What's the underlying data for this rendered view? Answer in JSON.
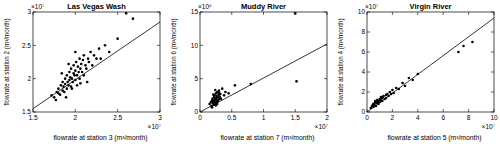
{
  "chart_data": [
    {
      "type": "scatter",
      "title": "Las Vegas Wash",
      "xlabel": "flowrate at station 3 (m³/month)",
      "ylabel": "flowrate at station 2 (m³/month)",
      "x_multiplier": "×10⁷",
      "y_multiplier": "×10⁷",
      "xlim": [
        1.5,
        3
      ],
      "ylim": [
        1.5,
        3
      ],
      "xticks": [
        1.5,
        2,
        2.5,
        3
      ],
      "yticks": [
        1.5,
        2,
        2.5,
        3
      ],
      "series": [
        {
          "type": "scatter",
          "marker": "dot",
          "color": "#000000",
          "x": [
            1.72,
            1.75,
            1.78,
            1.8,
            1.8,
            1.82,
            1.83,
            1.85,
            1.85,
            1.86,
            1.87,
            1.88,
            1.88,
            1.9,
            1.9,
            1.91,
            1.92,
            1.93,
            1.93,
            1.94,
            1.95,
            1.95,
            1.96,
            1.97,
            1.98,
            1.98,
            1.99,
            2.0,
            2.0,
            2.01,
            2.02,
            2.03,
            2.04,
            2.05,
            2.05,
            2.06,
            2.07,
            2.08,
            2.1,
            2.1,
            2.12,
            2.13,
            2.15,
            2.16,
            2.18,
            2.2,
            2.22,
            2.25,
            2.28,
            2.3,
            2.35,
            2.4,
            2.5,
            2.6,
            2.68,
            1.77,
            1.84,
            1.89,
            1.96,
            2.02,
            2.09,
            2.14,
            1.92,
            2.0,
            2.06
          ],
          "values": [
            1.75,
            1.72,
            1.8,
            1.78,
            1.85,
            1.76,
            1.9,
            1.82,
            1.95,
            1.88,
            1.8,
            1.92,
            2.0,
            1.85,
            2.05,
            1.95,
            1.9,
            2.1,
            1.98,
            2.02,
            1.88,
            2.15,
            2.0,
            1.95,
            2.08,
            2.2,
            2.05,
            1.98,
            2.12,
            2.25,
            2.05,
            2.18,
            2.1,
            2.0,
            2.3,
            2.15,
            2.22,
            2.1,
            2.05,
            2.35,
            2.2,
            2.15,
            2.3,
            2.25,
            2.4,
            2.2,
            2.35,
            2.3,
            2.45,
            2.3,
            2.5,
            2.4,
            2.6,
            2.98,
            2.9,
            1.68,
            2.08,
            1.72,
            1.85,
            1.9,
            2.28,
            1.95,
            2.22,
            2.4,
            1.93
          ]
        },
        {
          "type": "line",
          "line_style": "solid",
          "color": "#000000",
          "x": [
            1.5,
            3
          ],
          "values": [
            1.55,
            2.85
          ]
        }
      ]
    },
    {
      "type": "scatter",
      "title": "Muddy River",
      "xlabel": "flowrate at station 7 (m³/month)",
      "ylabel": "flowrate at station 6 (m³/month)",
      "x_multiplier": "×10⁷",
      "y_multiplier": "×10⁶",
      "xlim": [
        0,
        2
      ],
      "ylim": [
        0,
        15
      ],
      "xticks": [
        0,
        0.5,
        1,
        1.5,
        2
      ],
      "yticks": [
        0,
        5,
        10,
        15
      ],
      "series": [
        {
          "type": "scatter",
          "marker": "dot",
          "color": "#000000",
          "x": [
            0.15,
            0.17,
            0.18,
            0.19,
            0.2,
            0.2,
            0.21,
            0.22,
            0.22,
            0.23,
            0.23,
            0.24,
            0.24,
            0.25,
            0.25,
            0.25,
            0.26,
            0.26,
            0.27,
            0.27,
            0.28,
            0.28,
            0.29,
            0.3,
            0.3,
            0.31,
            0.32,
            0.33,
            0.35,
            0.38,
            0.4,
            0.45,
            0.55,
            0.8,
            1.5,
            1.52,
            0.19,
            0.21,
            0.24,
            0.27,
            0.3
          ],
          "values": [
            1.2,
            1.5,
            0.9,
            1.8,
            1.3,
            2.0,
            1.6,
            1.1,
            2.2,
            1.7,
            2.5,
            1.4,
            1.9,
            1.0,
            2.1,
            2.8,
            1.5,
            2.4,
            1.8,
            3.0,
            2.2,
            1.6,
            2.6,
            1.9,
            3.2,
            2.3,
            2.7,
            2.0,
            3.5,
            2.5,
            3.0,
            2.8,
            4.0,
            4.2,
            14.8,
            4.6,
            0.7,
            2.6,
            3.3,
            1.2,
            2.9
          ]
        },
        {
          "type": "line",
          "line_style": "solid",
          "color": "#000000",
          "x": [
            0,
            2
          ],
          "values": [
            0,
            10.2
          ]
        }
      ]
    },
    {
      "type": "scatter",
      "title": "Virgin River",
      "xlabel": "flowrate at station 5 (m³/month)",
      "ylabel": "flowrate at station 4 (m³/month)",
      "x_multiplier": "×10⁷",
      "y_multiplier": "×10⁷",
      "xlim": [
        0,
        10
      ],
      "ylim": [
        0,
        10
      ],
      "xticks": [
        0,
        2,
        4,
        6,
        8,
        10
      ],
      "yticks": [
        0,
        2,
        4,
        6,
        8,
        10
      ],
      "series": [
        {
          "type": "scatter",
          "marker": "dot",
          "color": "#000000",
          "x": [
            0.3,
            0.4,
            0.5,
            0.5,
            0.6,
            0.6,
            0.7,
            0.7,
            0.8,
            0.8,
            0.9,
            0.9,
            1.0,
            1.0,
            1.1,
            1.1,
            1.2,
            1.2,
            1.3,
            1.4,
            1.5,
            1.5,
            1.6,
            1.7,
            1.8,
            1.9,
            2.0,
            2.1,
            2.3,
            2.5,
            2.8,
            3.0,
            3.3,
            3.6,
            4.0,
            7.2,
            7.6,
            8.3,
            0.45,
            0.65,
            0.85,
            1.05,
            1.25
          ],
          "values": [
            0.4,
            0.6,
            0.5,
            0.8,
            0.7,
            0.9,
            0.6,
            1.0,
            0.9,
            1.2,
            0.8,
            1.1,
            1.0,
            1.3,
            1.2,
            1.5,
            1.1,
            1.4,
            1.6,
            1.3,
            1.7,
            1.4,
            1.8,
            1.6,
            2.0,
            1.8,
            2.2,
            1.9,
            2.4,
            2.3,
            2.9,
            2.6,
            3.4,
            3.2,
            3.8,
            6.0,
            6.6,
            7.0,
            0.7,
            1.1,
            1.0,
            1.2,
            1.5
          ]
        },
        {
          "type": "line",
          "line_style": "solid",
          "color": "#000000",
          "x": [
            0,
            10
          ],
          "values": [
            0,
            9.4
          ]
        }
      ]
    }
  ]
}
